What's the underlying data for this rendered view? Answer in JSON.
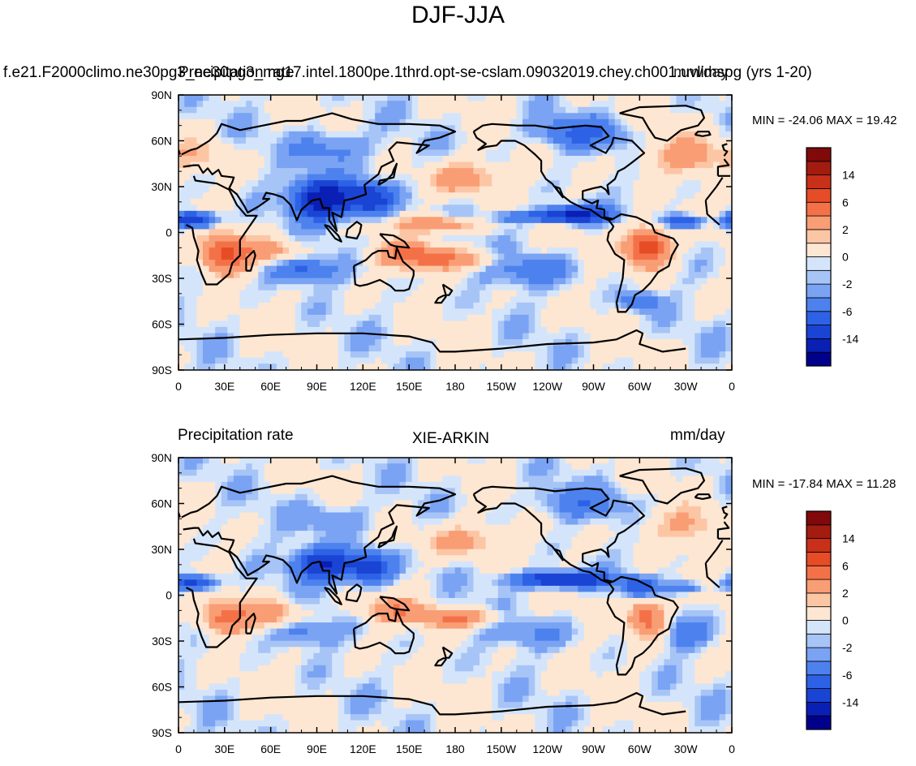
{
  "title": "DJF-JJA",
  "colors": {
    "levels": [
      "#00008c",
      "#0a1fb4",
      "#1a44d4",
      "#2e62e6",
      "#4d82ee",
      "#7aa3f3",
      "#a7c4f7",
      "#d4e5fb",
      "#fde6d2",
      "#fcc6a5",
      "#f99d75",
      "#f47148",
      "#e64c26",
      "#c9301a",
      "#a31c10",
      "#80090a"
    ],
    "coast": "#000000"
  },
  "chart_data": [
    {
      "type": "heatmap",
      "left_title": "",
      "center_title": "f.e21.F2000climo.ne30pg3_ne30pg3_mg17.intel.1800pe.1thrd.opt-se-cslam.09032019.chey.ch001.uvlimspg (yrs 1-20)",
      "center_title_overlay": "Precipitation rate",
      "right_title": "mm/day",
      "min_max": "MIN = -24.06 MAX =  19.42",
      "x_ticks": [
        "0",
        "30E",
        "60E",
        "90E",
        "120E",
        "150E",
        "180",
        "150W",
        "120W",
        "90W",
        "60W",
        "30W",
        "0"
      ],
      "y_ticks": [
        "90N",
        "60N",
        "30N",
        "0",
        "30S",
        "60S",
        "90S"
      ],
      "colorbar_labels": [
        "14",
        "6",
        "2",
        "0",
        "-2",
        "-6",
        "-14"
      ],
      "zlim": [
        -24.06,
        19.42
      ],
      "xlim": [
        0,
        360
      ],
      "ylim": [
        -90,
        90
      ],
      "features": [
        {
          "lon": 10,
          "lat": 8,
          "v": -10,
          "rlon": 14,
          "rlat": 5
        },
        {
          "lon": -30,
          "lat": 7,
          "v": -7,
          "rlon": 12,
          "rlat": 4
        },
        {
          "lon": 95,
          "lat": 22,
          "v": -14,
          "rlon": 18,
          "rlat": 12
        },
        {
          "lon": 125,
          "lat": 22,
          "v": -9,
          "rlon": 14,
          "rlat": 10
        },
        {
          "lon": -100,
          "lat": 12,
          "v": -10,
          "rlon": 18,
          "rlat": 5
        },
        {
          "lon": -125,
          "lat": 10,
          "v": -5,
          "rlon": 30,
          "rlat": 4
        },
        {
          "lon": 30,
          "lat": -15,
          "v": 10,
          "rlon": 14,
          "rlat": 12
        },
        {
          "lon": 60,
          "lat": -12,
          "v": 4,
          "rlon": 20,
          "rlat": 8
        },
        {
          "lon": 150,
          "lat": -15,
          "v": 7,
          "rlon": 20,
          "rlat": 8
        },
        {
          "lon": 180,
          "lat": -18,
          "v": 5,
          "rlon": 25,
          "rlat": 6
        },
        {
          "lon": -55,
          "lat": -10,
          "v": 12,
          "rlon": 14,
          "rlat": 12
        },
        {
          "lon": 170,
          "lat": 5,
          "v": 6,
          "rlon": 25,
          "rlat": 5
        },
        {
          "lon": -175,
          "lat": 35,
          "v": 5,
          "rlon": 22,
          "rlat": 10
        },
        {
          "lon": -30,
          "lat": 50,
          "v": 4,
          "rlon": 25,
          "rlat": 12
        },
        {
          "lon": -100,
          "lat": 65,
          "v": -4,
          "rlon": 30,
          "rlat": 10
        },
        {
          "lon": 100,
          "lat": 55,
          "v": -3,
          "rlon": 25,
          "rlat": 12
        },
        {
          "lon": 80,
          "lat": -25,
          "v": -5,
          "rlon": 20,
          "rlat": 8
        },
        {
          "lon": -130,
          "lat": -25,
          "v": -3,
          "rlon": 30,
          "rlat": 10
        },
        {
          "lon": 15,
          "lat": 50,
          "v": 2,
          "rlon": 20,
          "rlat": 10
        },
        {
          "lon": -60,
          "lat": -45,
          "v": -4,
          "rlon": 12,
          "rlat": 6
        }
      ]
    },
    {
      "type": "heatmap",
      "left_title": "Precipitation rate",
      "center_title": "XIE-ARKIN",
      "center_title_overlay": "",
      "right_title": "mm/day",
      "min_max": "MIN = -17.84 MAX =  11.28",
      "x_ticks": [
        "0",
        "30E",
        "60E",
        "90E",
        "120E",
        "150E",
        "180",
        "150W",
        "120W",
        "90W",
        "60W",
        "30W",
        "0"
      ],
      "y_ticks": [
        "90N",
        "60N",
        "30N",
        "0",
        "30S",
        "60S",
        "90S"
      ],
      "colorbar_labels": [
        "14",
        "6",
        "2",
        "0",
        "-2",
        "-6",
        "-14"
      ],
      "zlim": [
        -17.84,
        11.28
      ],
      "xlim": [
        0,
        360
      ],
      "ylim": [
        -90,
        90
      ],
      "features": [
        {
          "lon": 10,
          "lat": 8,
          "v": -8,
          "rlon": 14,
          "rlat": 5
        },
        {
          "lon": -30,
          "lat": 5,
          "v": -4,
          "rlon": 12,
          "rlat": 4
        },
        {
          "lon": 95,
          "lat": 20,
          "v": -10,
          "rlon": 18,
          "rlat": 10
        },
        {
          "lon": 125,
          "lat": 18,
          "v": -8,
          "rlon": 14,
          "rlat": 10
        },
        {
          "lon": -110,
          "lat": 10,
          "v": -10,
          "rlon": 30,
          "rlat": 5
        },
        {
          "lon": 30,
          "lat": -15,
          "v": 7,
          "rlon": 14,
          "rlat": 10
        },
        {
          "lon": 60,
          "lat": -12,
          "v": 5,
          "rlon": 18,
          "rlat": 8
        },
        {
          "lon": 140,
          "lat": -10,
          "v": 5,
          "rlon": 22,
          "rlat": 7
        },
        {
          "lon": 180,
          "lat": -15,
          "v": 6,
          "rlon": 25,
          "rlat": 6
        },
        {
          "lon": -55,
          "lat": -15,
          "v": 8,
          "rlon": 12,
          "rlat": 12
        },
        {
          "lon": -175,
          "lat": 35,
          "v": 4,
          "rlon": 25,
          "rlat": 10
        },
        {
          "lon": -30,
          "lat": 45,
          "v": 3,
          "rlon": 25,
          "rlat": 12
        },
        {
          "lon": -100,
          "lat": 60,
          "v": -3,
          "rlon": 30,
          "rlat": 10
        },
        {
          "lon": 100,
          "lat": 50,
          "v": -2,
          "rlon": 25,
          "rlat": 12
        },
        {
          "lon": 80,
          "lat": -25,
          "v": -3,
          "rlon": 20,
          "rlat": 8
        },
        {
          "lon": -130,
          "lat": -25,
          "v": -2,
          "rlon": 30,
          "rlat": 10
        },
        {
          "lon": -30,
          "lat": -25,
          "v": -3,
          "rlon": 15,
          "rlat": 10
        },
        {
          "lon": -60,
          "lat": 5,
          "v": -6,
          "rlon": 10,
          "rlat": 6
        }
      ]
    }
  ]
}
